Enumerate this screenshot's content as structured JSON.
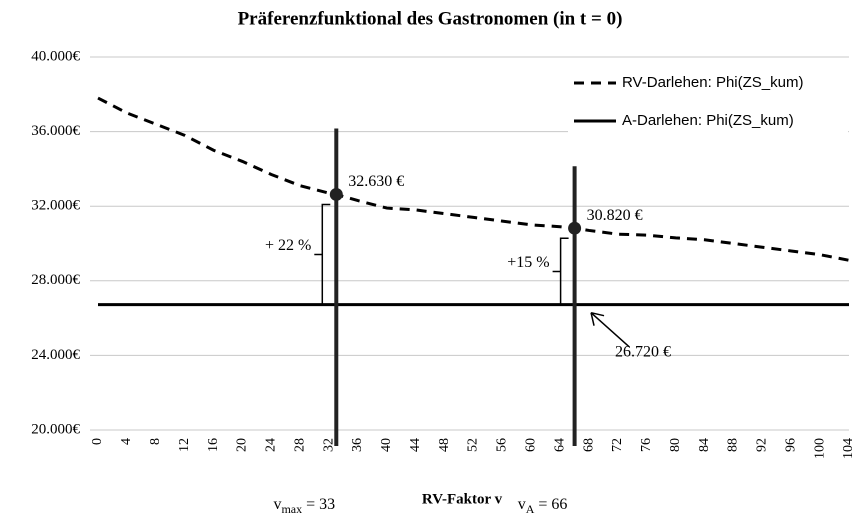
{
  "chart_data": {
    "type": "line",
    "title": "Präferenzfunktional des Gastronomen (in t = 0)",
    "xlabel": "RV-Faktor v",
    "x": [
      0,
      4,
      8,
      12,
      16,
      20,
      24,
      28,
      32,
      33,
      36,
      40,
      44,
      48,
      52,
      56,
      60,
      64,
      66,
      68,
      72,
      76,
      80,
      84,
      88,
      92,
      96,
      100,
      104
    ],
    "series": [
      {
        "name": "RV-Darlehen: Phi(ZS_kum)",
        "color": "#000000",
        "dash": true,
        "values": [
          37800,
          37000,
          36400,
          35800,
          35000,
          34400,
          33700,
          33100,
          32700,
          32630,
          32300,
          31900,
          31800,
          31600,
          31400,
          31200,
          31000,
          30900,
          30820,
          30700,
          30500,
          30450,
          30300,
          30200,
          30000,
          29800,
          29600,
          29400,
          29100
        ],
        "value_labels": [
          null,
          null,
          null,
          null,
          null,
          null,
          null,
          null,
          null,
          "32.630 €",
          null,
          null,
          null,
          null,
          null,
          null,
          null,
          null,
          "30.820 €",
          null,
          null,
          null,
          null,
          null,
          null,
          null,
          null,
          null,
          null
        ]
      },
      {
        "name": "A-Darlehen: Phi(ZS_kum)",
        "color": "#000000",
        "dash": false,
        "values": [
          26720,
          26720,
          26720,
          26720,
          26720,
          26720,
          26720,
          26720,
          26720,
          26720,
          26720,
          26720,
          26720,
          26720,
          26720,
          26720,
          26720,
          26720,
          26720,
          26720,
          26720,
          26720,
          26720,
          26720,
          26720,
          26720,
          26720,
          26720,
          26720
        ],
        "value_labels": [
          null,
          null,
          null,
          null,
          null,
          null,
          null,
          null,
          null,
          null,
          null,
          null,
          null,
          null,
          null,
          null,
          null,
          null,
          null,
          "26.720 €",
          null,
          null,
          null,
          null,
          null,
          null,
          null,
          null,
          null
        ]
      }
    ],
    "xlim": [
      0,
      104
    ],
    "xticks": [
      0,
      4,
      8,
      12,
      16,
      20,
      24,
      28,
      32,
      36,
      40,
      44,
      48,
      52,
      56,
      60,
      64,
      68,
      72,
      76,
      80,
      84,
      88,
      92,
      96,
      100,
      104
    ],
    "ylim": [
      20000,
      40000
    ],
    "yticks": [
      {
        "value": 20000,
        "label": "20.000€"
      },
      {
        "value": 24000,
        "label": "24.000€"
      },
      {
        "value": 28000,
        "label": "28.000€"
      },
      {
        "value": 32000,
        "label": "32.000€"
      },
      {
        "value": 36000,
        "label": "36.000€"
      },
      {
        "value": 40000,
        "label": "40.000€"
      }
    ],
    "grid": true,
    "legend": "upper right",
    "vlines": [
      {
        "x": 33,
        "point": 9,
        "symbol": "v",
        "sub": "max",
        "text": "= 33",
        "diff": "+ 22 %"
      },
      {
        "x": 66,
        "point": 18,
        "symbol": "v",
        "sub": "A",
        "text": "= 66",
        "diff": "+15 %"
      }
    ]
  }
}
